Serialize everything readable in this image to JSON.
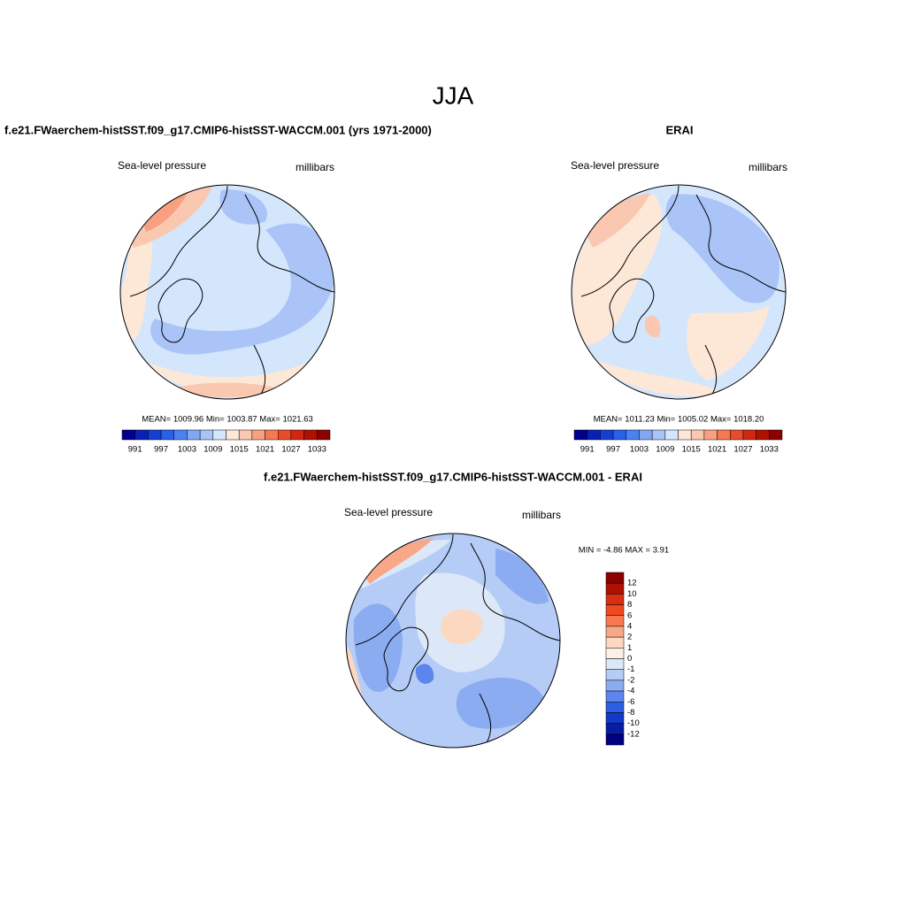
{
  "title": "JJA",
  "panels": [
    {
      "title": "f.e21.FWaerchem-histSST.f09_g17.CMIP6-histSST-WACCM.001 (yrs 1971-2000)",
      "variable": "Sea-level pressure",
      "units": "millibars",
      "stats": "MEAN= 1009.96  Min= 1003.87  Max= 1021.63",
      "colorbar_labels": [
        991,
        997,
        1003,
        1009,
        1015,
        1021,
        1027,
        1033
      ]
    },
    {
      "title": "ERAI",
      "variable": "Sea-level pressure",
      "units": "millibars",
      "stats": "MEAN= 1011.23  Min= 1005.02  Max= 1018.20",
      "colorbar_labels": [
        991,
        997,
        1003,
        1009,
        1015,
        1021,
        1027,
        1033
      ]
    }
  ],
  "colors": [
    "#00008c",
    "#0a1fb4",
    "#1440d2",
    "#2860e8",
    "#4a82f0",
    "#80a6f4",
    "#aac4f8",
    "#d4e6fc",
    "#fde8d8",
    "#fac8b0",
    "#f8a080",
    "#f47850",
    "#e84c28",
    "#d02810",
    "#b01000",
    "#8c0000"
  ],
  "difference": {
    "title": "f.e21.FWaerchem-histSST.f09_g17.CMIP6-histSST-WACCM.001 - ERAI",
    "variable": "Sea-level pressure",
    "units": "millibars",
    "minmax": "MIN =  -4.86 MAX =   3.91",
    "colorbar_labels": [
      12,
      10,
      8,
      6,
      4,
      2,
      1,
      0,
      -1,
      -2,
      -4,
      -6,
      -8,
      -10,
      -12
    ],
    "colors": [
      "#8c0000",
      "#b01000",
      "#d83010",
      "#f04820",
      "#f87850",
      "#f8a888",
      "#fcd8c0",
      "#fdf0e6",
      "#dce8f8",
      "#b4ccf6",
      "#8cacf2",
      "#5c86ee",
      "#2e5ee6",
      "#1438c8",
      "#0a1ca0",
      "#000080"
    ]
  }
}
